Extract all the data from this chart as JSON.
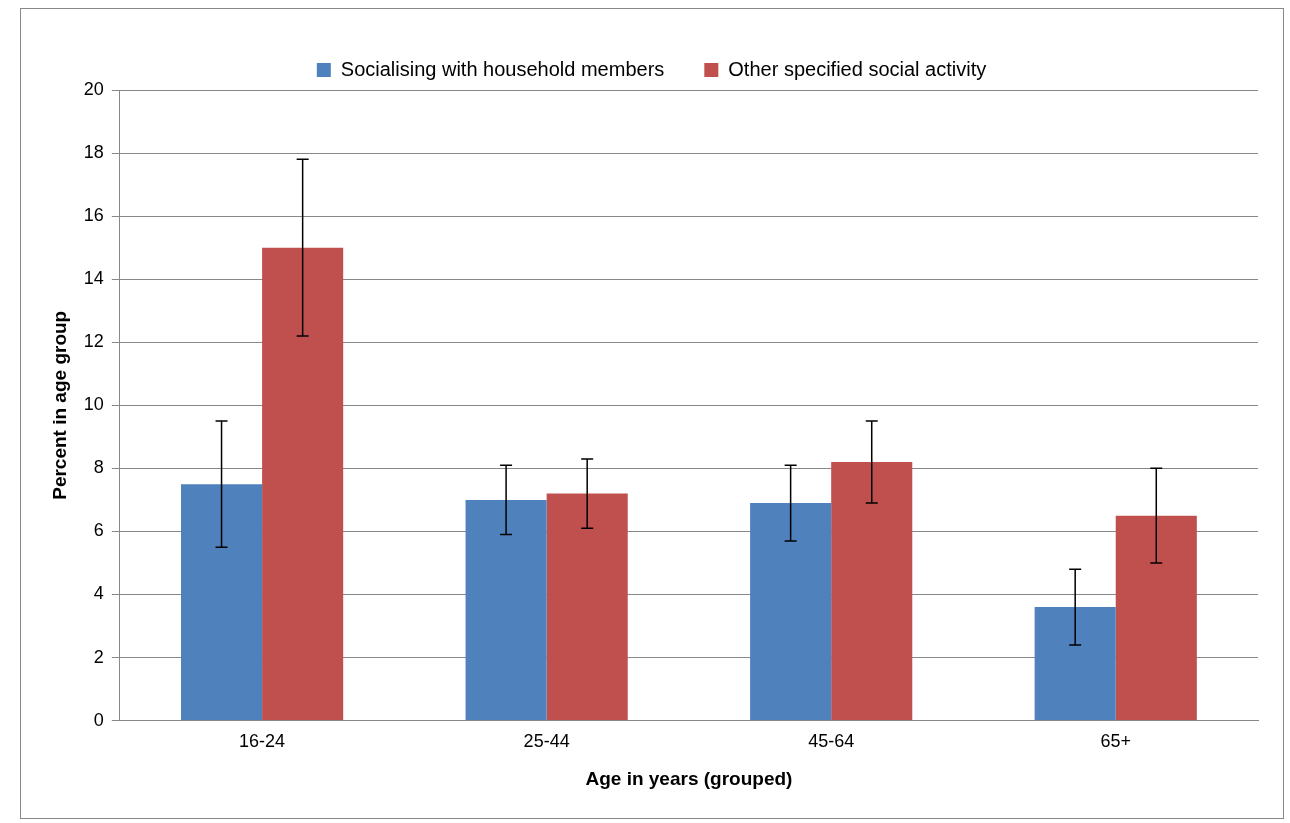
{
  "chart_data": {
    "type": "bar",
    "xlabel": "Age in years (grouped)",
    "ylabel": "Percent in age group",
    "categories": [
      "16-24",
      "25-44",
      "45-64",
      "65+"
    ],
    "series": [
      {
        "name": "Socialising with household members",
        "color": "#4f81bd",
        "values": [
          7.5,
          7.0,
          6.9,
          3.6
        ],
        "errors": [
          2.0,
          1.1,
          1.2,
          1.2
        ]
      },
      {
        "name": "Other specified social activity",
        "color": "#c0504d",
        "values": [
          15.0,
          7.2,
          8.2,
          6.5
        ],
        "errors": [
          2.8,
          1.1,
          1.3,
          1.5
        ]
      }
    ],
    "ylim": [
      0,
      20
    ],
    "yticks": [
      0,
      2,
      4,
      6,
      8,
      10,
      12,
      14,
      16,
      18,
      20
    ],
    "grid": "y",
    "legend": "top"
  }
}
